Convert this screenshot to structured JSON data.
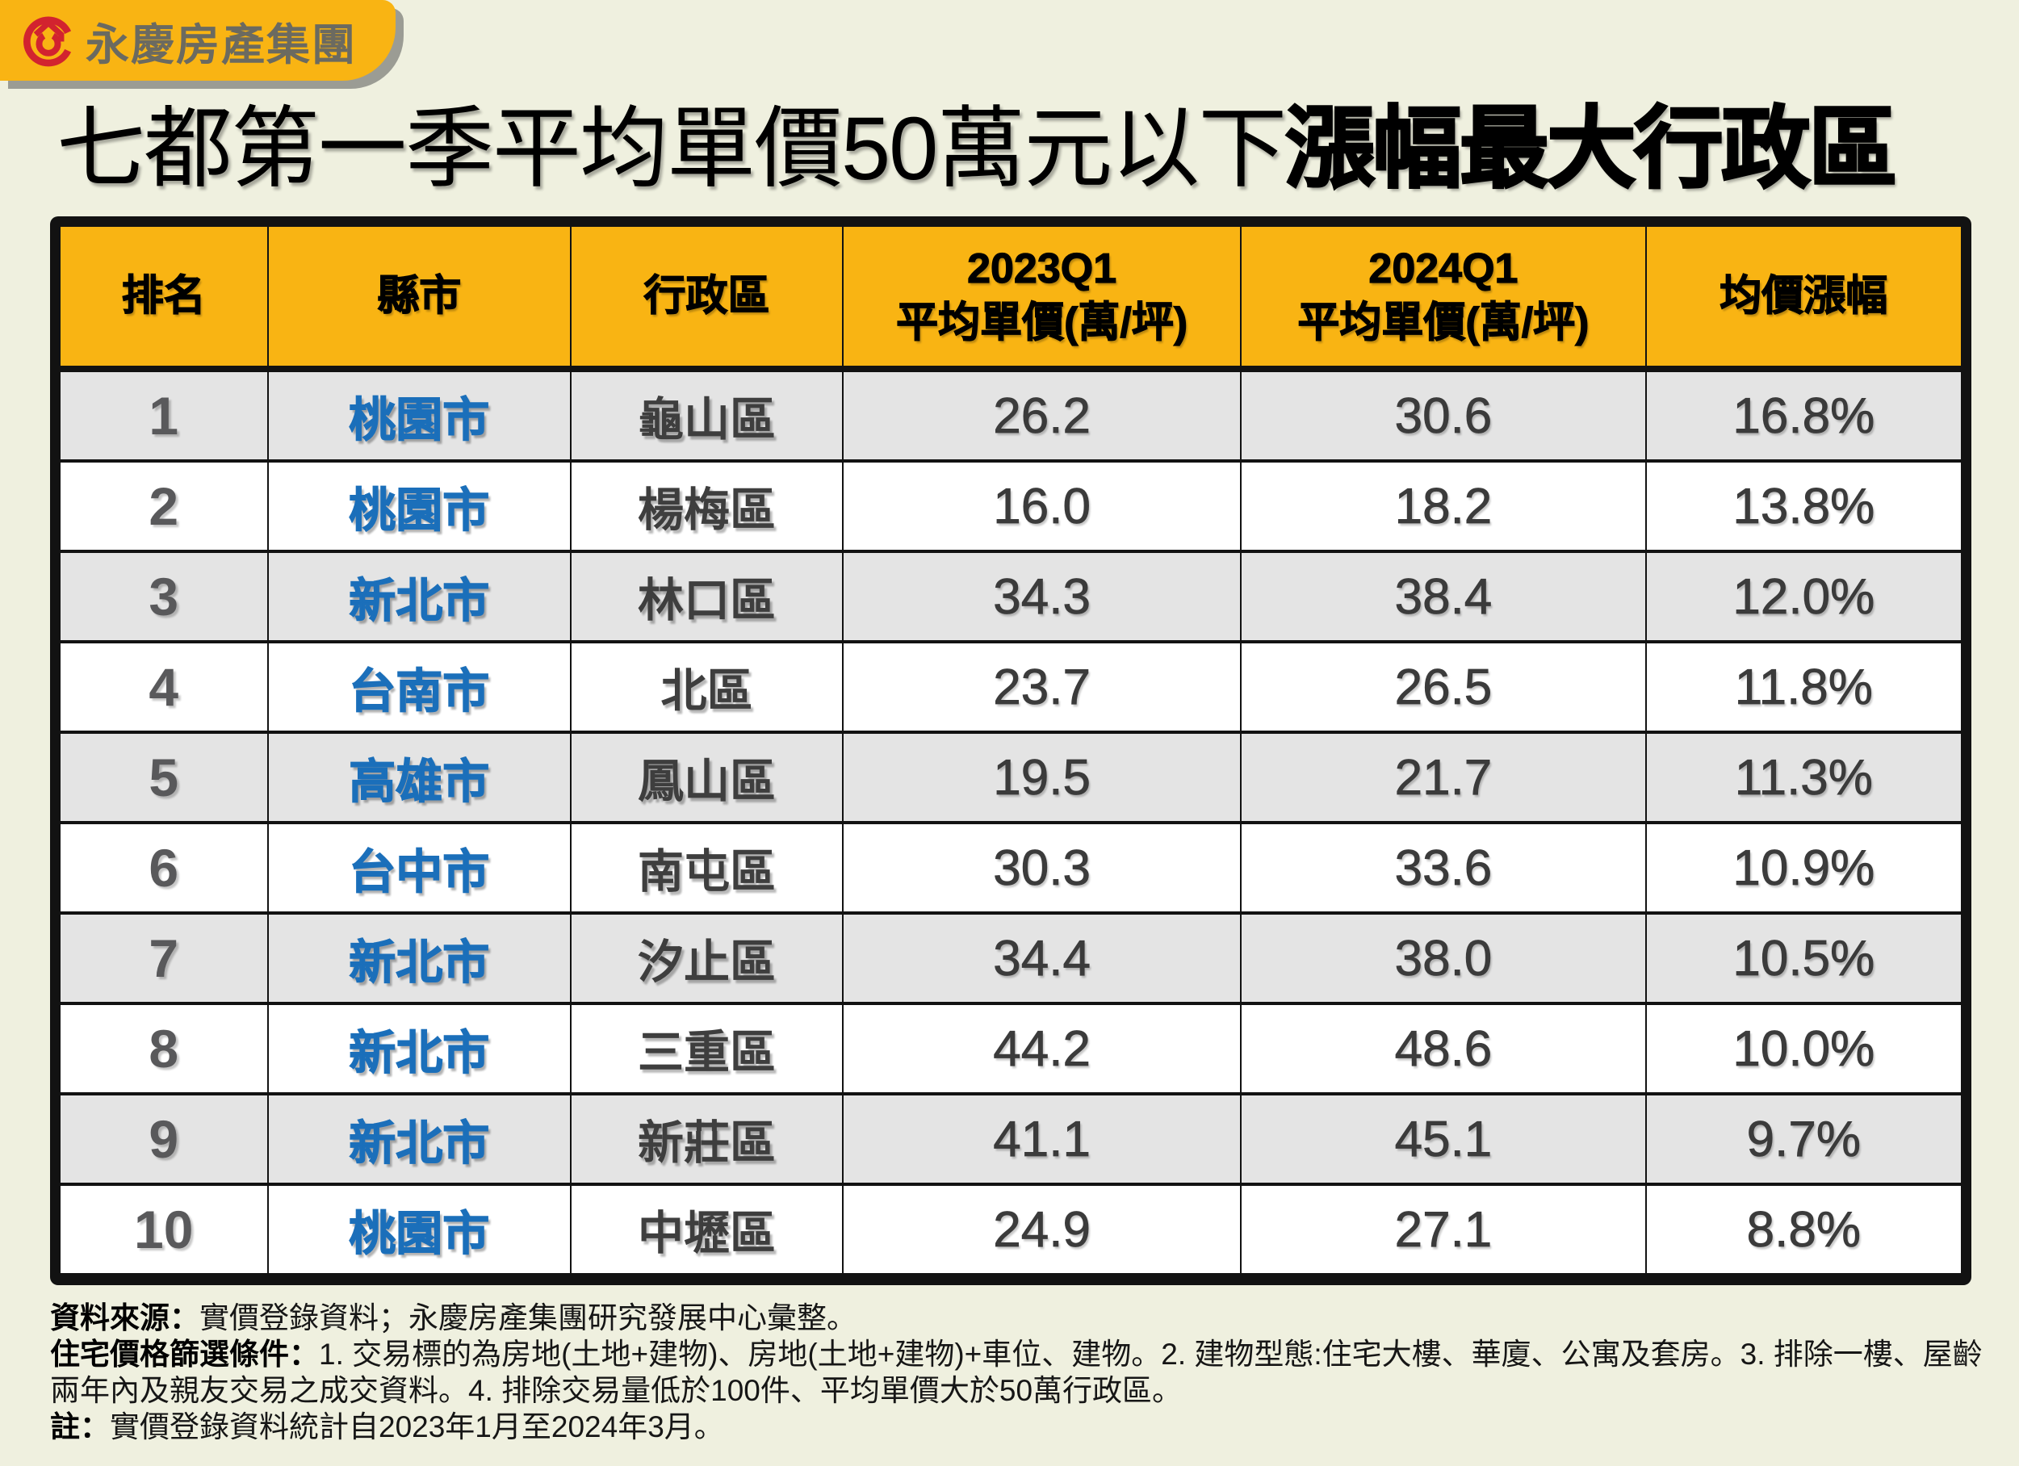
{
  "logo": {
    "brand_name": "永慶房產集團"
  },
  "title": {
    "regular": "七都第一季平均單價50萬元以下",
    "emphasis": "漲幅最大行政區"
  },
  "chart_data": {
    "type": "table",
    "title": "七都第一季平均單價50萬元以下漲幅最大行政區",
    "columns": [
      "排名",
      "縣市",
      "行政區",
      "2023Q1\n平均單價(萬/坪)",
      "2024Q1\n平均單價(萬/坪)",
      "均價漲幅"
    ],
    "rows": [
      {
        "rank": "1",
        "city": "桃園市",
        "district": "龜山區",
        "q1_2023": "26.2",
        "q1_2024": "30.6",
        "change": "16.8%"
      },
      {
        "rank": "2",
        "city": "桃園市",
        "district": "楊梅區",
        "q1_2023": "16.0",
        "q1_2024": "18.2",
        "change": "13.8%"
      },
      {
        "rank": "3",
        "city": "新北市",
        "district": "林口區",
        "q1_2023": "34.3",
        "q1_2024": "38.4",
        "change": "12.0%"
      },
      {
        "rank": "4",
        "city": "台南市",
        "district": "北區",
        "q1_2023": "23.7",
        "q1_2024": "26.5",
        "change": "11.8%"
      },
      {
        "rank": "5",
        "city": "高雄市",
        "district": "鳳山區",
        "q1_2023": "19.5",
        "q1_2024": "21.7",
        "change": "11.3%"
      },
      {
        "rank": "6",
        "city": "台中市",
        "district": "南屯區",
        "q1_2023": "30.3",
        "q1_2024": "33.6",
        "change": "10.9%"
      },
      {
        "rank": "7",
        "city": "新北市",
        "district": "汐止區",
        "q1_2023": "34.4",
        "q1_2024": "38.0",
        "change": "10.5%"
      },
      {
        "rank": "8",
        "city": "新北市",
        "district": "三重區",
        "q1_2023": "44.2",
        "q1_2024": "48.6",
        "change": "10.0%"
      },
      {
        "rank": "9",
        "city": "新北市",
        "district": "新莊區",
        "q1_2023": "41.1",
        "q1_2024": "45.1",
        "change": "9.7%"
      },
      {
        "rank": "10",
        "city": "桃園市",
        "district": "中壢區",
        "q1_2023": "24.9",
        "q1_2024": "27.1",
        "change": "8.8%"
      }
    ]
  },
  "footer": {
    "source_label": "資料來源：",
    "source_text": "實價登錄資料；永慶房產集團研究發展中心彙整。",
    "criteria_label": "住宅價格篩選條件：",
    "criteria_text": "1. 交易標的為房地(土地+建物)、房地(土地+建物)+車位、建物。2. 建物型態:住宅大樓、華廈、公寓及套房。3. 排除一樓、屋齡兩年內及親友交易之成交資料。4. 排除交易量低於100件、平均單價大於50萬行政區。",
    "note_label": "註：",
    "note_text": "實價登錄資料統計自2023年1月至2024年3月。"
  },
  "colors": {
    "accent_yellow": "#F9B413",
    "city_blue": "#1B6FBA",
    "logo_red": "#D2232F",
    "background": "#EFF0DF"
  }
}
